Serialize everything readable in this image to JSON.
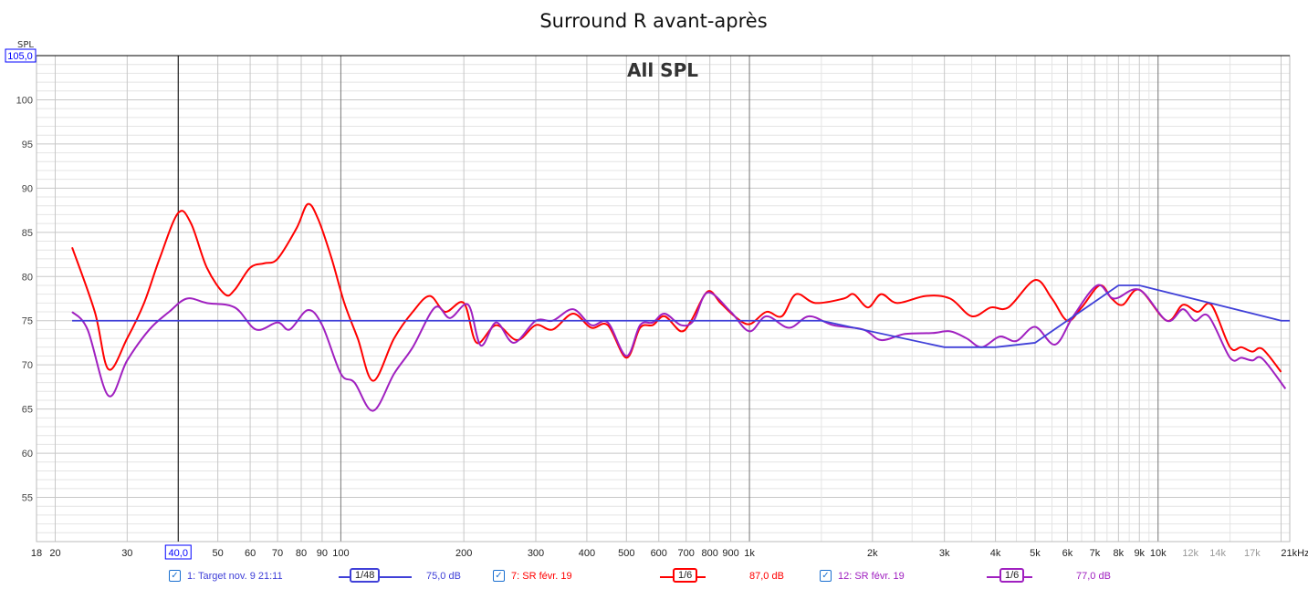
{
  "chart_data": {
    "type": "line",
    "title": "Surround R avant-après",
    "annotation": "All SPL",
    "ylabel": "SPL",
    "xlabel": "",
    "x_unit": "kHz",
    "xscale": "log",
    "xlim": [
      18,
      21000
    ],
    "ylim": [
      50,
      105
    ],
    "grid": true,
    "cursor": {
      "x_label": "40,0",
      "y_label": "105,0"
    },
    "yticks": [
      100,
      95,
      90,
      85,
      80,
      75,
      70,
      65,
      60,
      55
    ],
    "xticks": [
      {
        "v": 18,
        "l": "18"
      },
      {
        "v": 20,
        "l": "20"
      },
      {
        "v": 30,
        "l": "30"
      },
      {
        "v": 50,
        "l": "50"
      },
      {
        "v": 60,
        "l": "60"
      },
      {
        "v": 70,
        "l": "70"
      },
      {
        "v": 80,
        "l": "80"
      },
      {
        "v": 90,
        "l": "90"
      },
      {
        "v": 100,
        "l": "100"
      },
      {
        "v": 200,
        "l": "200"
      },
      {
        "v": 300,
        "l": "300"
      },
      {
        "v": 400,
        "l": "400"
      },
      {
        "v": 500,
        "l": "500"
      },
      {
        "v": 600,
        "l": "600"
      },
      {
        "v": 700,
        "l": "700"
      },
      {
        "v": 800,
        "l": "800"
      },
      {
        "v": 900,
        "l": "900"
      },
      {
        "v": 1000,
        "l": "1k"
      },
      {
        "v": 2000,
        "l": "2k"
      },
      {
        "v": 3000,
        "l": "3k"
      },
      {
        "v": 4000,
        "l": "4k"
      },
      {
        "v": 5000,
        "l": "5k"
      },
      {
        "v": 6000,
        "l": "6k"
      },
      {
        "v": 7000,
        "l": "7k"
      },
      {
        "v": 8000,
        "l": "8k"
      },
      {
        "v": 9000,
        "l": "9k"
      },
      {
        "v": 10000,
        "l": "10k"
      },
      {
        "v": 12000,
        "l": "12k",
        "grey": true
      },
      {
        "v": 14000,
        "l": "14k",
        "grey": true
      },
      {
        "v": 17000,
        "l": "17k",
        "grey": true
      },
      {
        "v": 21000,
        "l": "21kHz"
      }
    ],
    "series": [
      {
        "name": "1: Target nov. 9 21:11",
        "smoothing": "1/48",
        "level": "75,0 dB",
        "color": "#4040d8",
        "x": [
          22,
          1500,
          3000,
          4000,
          5000,
          8000,
          9000,
          20000,
          21000
        ],
        "y": [
          75,
          75,
          72,
          72,
          72.5,
          79,
          79,
          75,
          75
        ]
      },
      {
        "name": "7: SR févr. 19",
        "smoothing": "1/6",
        "level": "87,0 dB",
        "color": "#ff0000",
        "x": [
          22,
          25,
          27,
          30,
          33,
          36,
          40,
          43,
          47,
          52,
          55,
          60,
          65,
          70,
          78,
          83,
          88,
          95,
          102,
          110,
          120,
          135,
          150,
          165,
          180,
          200,
          215,
          240,
          270,
          300,
          330,
          370,
          410,
          450,
          500,
          540,
          580,
          620,
          680,
          720,
          790,
          850,
          920,
          1000,
          1100,
          1200,
          1300,
          1450,
          1700,
          1800,
          1950,
          2100,
          2300,
          2700,
          3100,
          3500,
          3900,
          4300,
          5000,
          5500,
          6000,
          6500,
          7200,
          7700,
          8200,
          9000,
          10500,
          11500,
          12500,
          13500,
          15000,
          16000,
          17000,
          18000,
          20000
        ],
        "y": [
          83.3,
          76,
          69.5,
          73,
          77,
          82,
          87.2,
          86,
          81,
          78,
          78.5,
          81,
          81.5,
          82,
          85.5,
          88.2,
          86.5,
          82,
          77,
          73,
          68.2,
          73,
          76,
          77.8,
          76,
          77,
          72.5,
          74.5,
          72.8,
          74.5,
          74,
          75.8,
          74.2,
          74.5,
          70.8,
          74.2,
          74.5,
          75.5,
          73.8,
          75,
          78.3,
          77,
          75.5,
          74.6,
          76,
          75.5,
          78,
          77,
          77.5,
          78,
          76.5,
          78,
          77,
          77.8,
          77.5,
          75.5,
          76.5,
          76.5,
          79.6,
          77.5,
          75,
          76.5,
          79,
          77.5,
          76.8,
          78.5,
          75,
          76.8,
          76,
          76.8,
          72,
          72,
          71.5,
          71.8,
          69.2
        ]
      },
      {
        "name": "12: SR févr. 19",
        "smoothing": "1/6",
        "level": "77,0 dB",
        "color": "#a020c0",
        "x": [
          22,
          24,
          27,
          30,
          34,
          38,
          42,
          47,
          55,
          62,
          70,
          75,
          83,
          90,
          100,
          108,
          120,
          135,
          150,
          170,
          185,
          205,
          220,
          240,
          265,
          300,
          330,
          370,
          410,
          450,
          500,
          540,
          580,
          620,
          680,
          730,
          790,
          900,
          1000,
          1100,
          1250,
          1400,
          1600,
          1900,
          2100,
          2400,
          2800,
          3100,
          3400,
          3700,
          4100,
          4500,
          5000,
          5600,
          6200,
          7100,
          7800,
          9000,
          10500,
          11500,
          12300,
          13300,
          15000,
          16000,
          17000,
          18000,
          20500
        ],
        "y": [
          76,
          74,
          66.5,
          70.5,
          74,
          76,
          77.5,
          77,
          76.5,
          74,
          74.8,
          74,
          76.2,
          74.5,
          69,
          68,
          64.8,
          69,
          72,
          76.5,
          75.3,
          76.8,
          72.2,
          74.8,
          72.5,
          75,
          75,
          76.3,
          74.5,
          74.8,
          71,
          74.5,
          74.8,
          75.8,
          74.5,
          75,
          78.2,
          76,
          73.8,
          75.5,
          74.2,
          75.5,
          74.5,
          74,
          72.8,
          73.5,
          73.6,
          73.8,
          73,
          72,
          73.2,
          72.7,
          74.3,
          72.3,
          75.5,
          79,
          77.5,
          78.5,
          75,
          76.3,
          75,
          75.5,
          70.8,
          70.8,
          70.5,
          70.7,
          67.3
        ]
      }
    ]
  }
}
